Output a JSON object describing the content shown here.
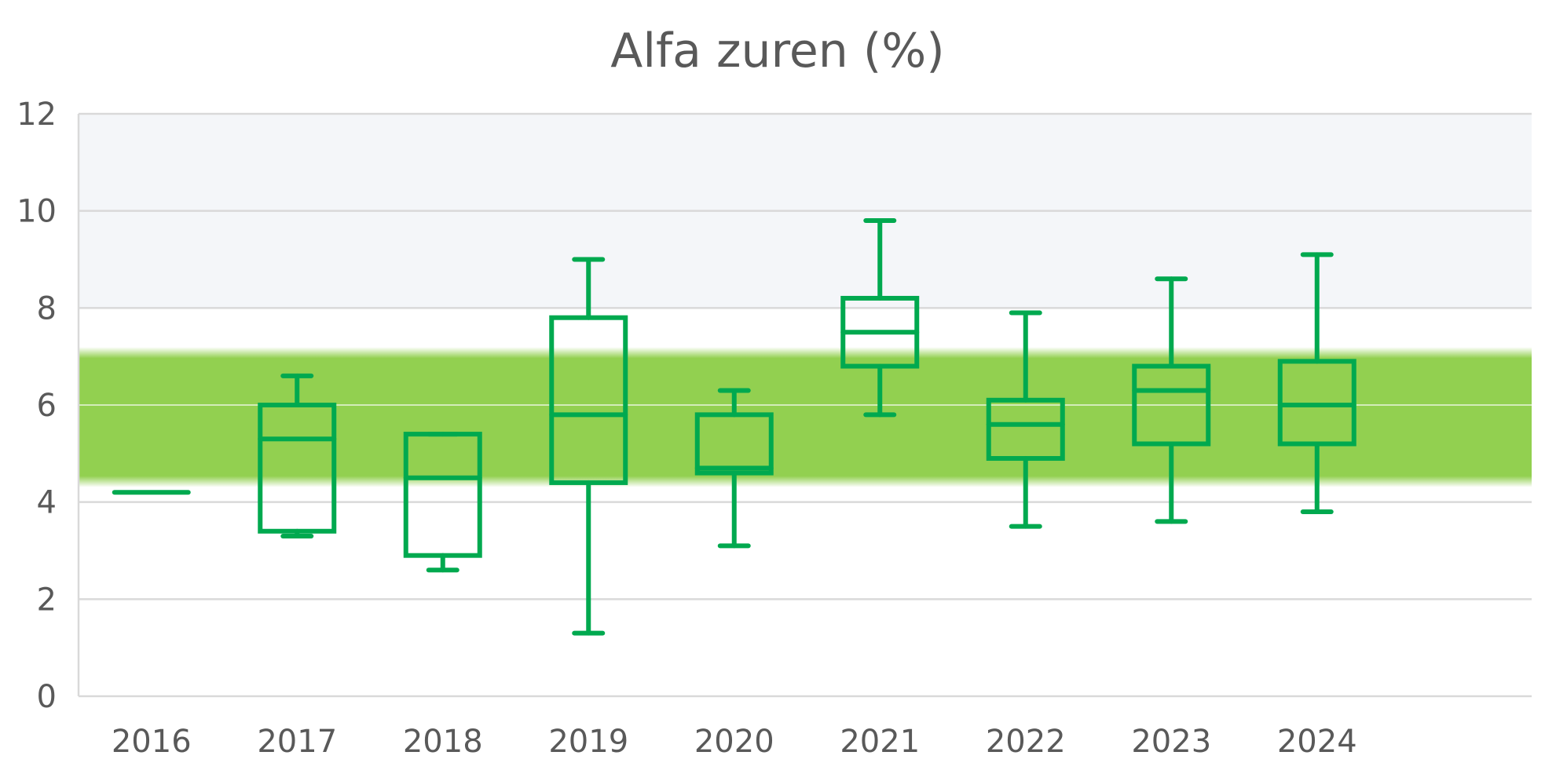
{
  "chart_data": {
    "type": "boxplot",
    "title": "Alfa zuren (%)",
    "xlabel": "",
    "ylabel": "",
    "ylim": [
      0,
      12
    ],
    "yticks": [
      0,
      2,
      4,
      6,
      8,
      10,
      12
    ],
    "grid": true,
    "categories": [
      "2016",
      "2017",
      "2018",
      "2019",
      "2020",
      "2021",
      "2022",
      "2023",
      "2024"
    ],
    "boxes": [
      {
        "category": "2016",
        "min": 4.2,
        "q1": 4.2,
        "median": 4.2,
        "q3": 4.2,
        "max": 4.2
      },
      {
        "category": "2017",
        "min": 3.3,
        "q1": 3.4,
        "median": 5.3,
        "q3": 6.0,
        "max": 6.6
      },
      {
        "category": "2018",
        "min": 2.6,
        "q1": 2.9,
        "median": 4.5,
        "q3": 5.4,
        "max": 5.4
      },
      {
        "category": "2019",
        "min": 1.3,
        "q1": 4.4,
        "median": 5.8,
        "q3": 7.8,
        "max": 9.0
      },
      {
        "category": "2020",
        "min": 3.1,
        "q1": 4.6,
        "median": 4.7,
        "q3": 5.8,
        "max": 6.3
      },
      {
        "category": "2021",
        "min": 5.8,
        "q1": 6.8,
        "median": 7.5,
        "q3": 8.2,
        "max": 9.8
      },
      {
        "category": "2022",
        "min": 3.5,
        "q1": 4.9,
        "median": 5.6,
        "q3": 6.1,
        "max": 7.9
      },
      {
        "category": "2023",
        "min": 3.6,
        "q1": 5.2,
        "median": 6.3,
        "q3": 6.8,
        "max": 8.6
      },
      {
        "category": "2024",
        "min": 3.8,
        "q1": 5.2,
        "median": 6.0,
        "q3": 6.9,
        "max": 9.1
      }
    ],
    "reference_band": {
      "from": 4.5,
      "to": 7.0
    },
    "colors": {
      "box": "#00a94f",
      "band": "#92d050",
      "background_upper": "#f4f6f9",
      "grid": "#d9d9d9",
      "text": "#595959"
    }
  }
}
